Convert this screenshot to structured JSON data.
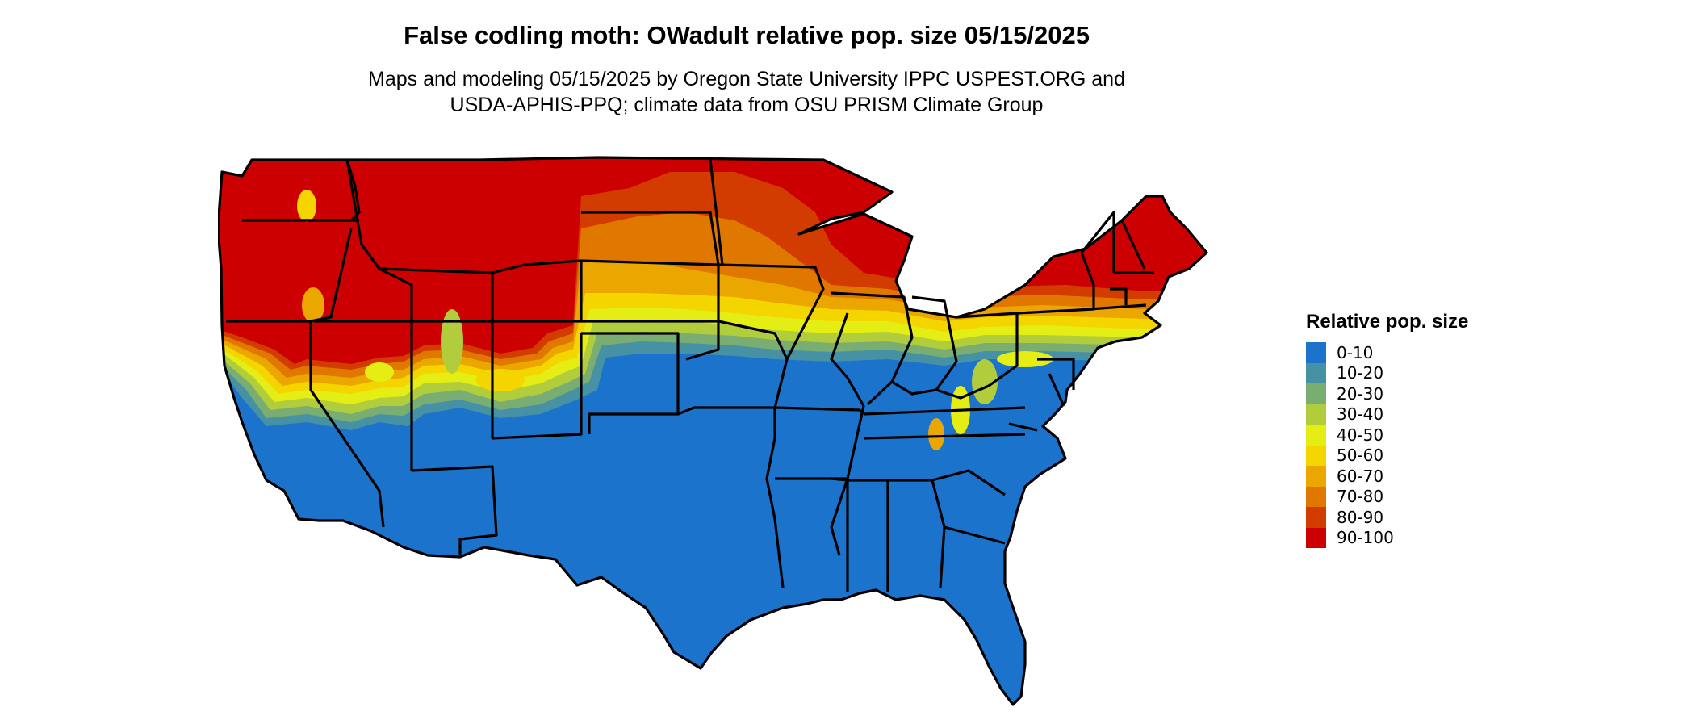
{
  "title": "False codling moth: OWadult relative pop. size 05/15/2025",
  "subtitle_lines": [
    "Maps and modeling 05/15/2025 by Oregon State University IPPC USPEST.ORG and",
    "USDA-APHIS-PPQ; climate data from OSU PRISM Climate Group"
  ],
  "legend": {
    "title": "Relative pop. size",
    "items": [
      {
        "label": "0-10",
        "color": "#1c73cb"
      },
      {
        "label": "10-20",
        "color": "#4692a4"
      },
      {
        "label": "20-30",
        "color": "#79ad72"
      },
      {
        "label": "30-40",
        "color": "#b2cd3c"
      },
      {
        "label": "40-50",
        "color": "#e4ee14"
      },
      {
        "label": "50-60",
        "color": "#f4d500"
      },
      {
        "label": "60-70",
        "color": "#eca600"
      },
      {
        "label": "70-80",
        "color": "#e07800"
      },
      {
        "label": "80-90",
        "color": "#d23c00"
      },
      {
        "label": "90-100",
        "color": "#cc0000"
      }
    ]
  },
  "map": {
    "region": "Contiguous United States",
    "north_class": "90-100",
    "south_class": "0-10"
  }
}
